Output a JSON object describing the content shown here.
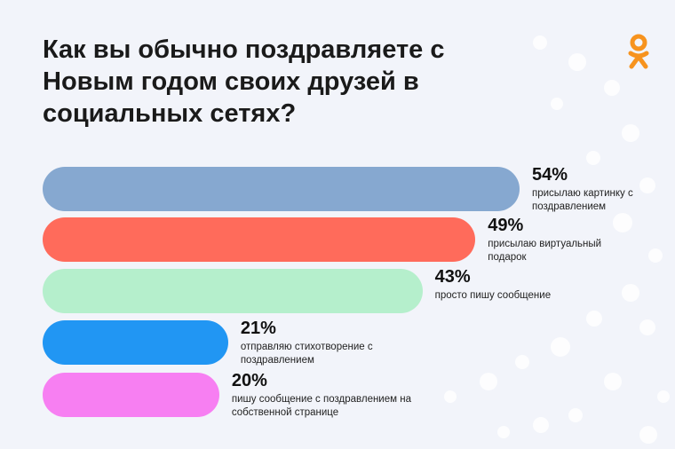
{
  "chart_data": {
    "type": "bar",
    "orientation": "horizontal",
    "title": "Как вы обычно поздравляете с Новым годом своих друзей в социальных сетях?",
    "categories": [
      "присылаю картинку с поздравлением",
      "присылаю виртуальный подарок",
      "просто пишу сообщение",
      "отправляю стихотворение с поздравлением",
      "пишу сообщение с поздравлением на собственной странице"
    ],
    "values": [
      54,
      49,
      43,
      21,
      20
    ],
    "value_labels": [
      "54%",
      "49%",
      "43%",
      "21%",
      "20%"
    ],
    "colors": [
      "#86a8d0",
      "#ff6b5b",
      "#b5efcc",
      "#2196f3",
      "#f77ff2"
    ]
  }
}
